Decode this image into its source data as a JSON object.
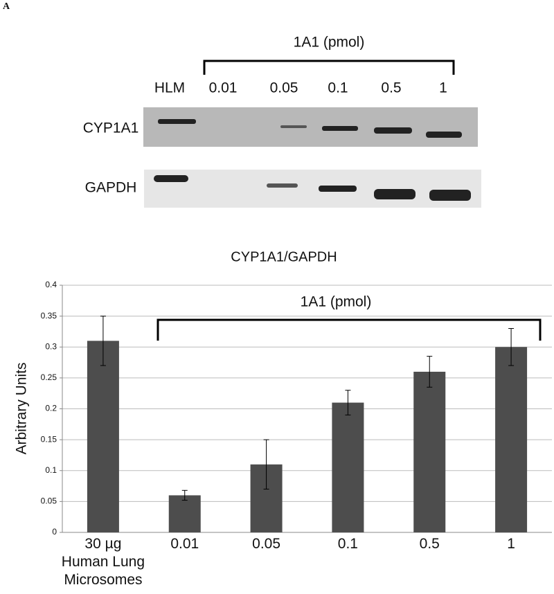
{
  "panel_label": "A",
  "blot": {
    "group_label": "1A1 (pmol)",
    "lanes": [
      "HLM",
      "0.01",
      "0.05",
      "0.1",
      "0.5",
      "1"
    ],
    "rows": [
      "CYP1A1",
      "GAPDH"
    ]
  },
  "chart_data": {
    "type": "bar",
    "title": "CYP1A1/GAPDH",
    "y_label": "Arbitrary Units",
    "annotation": "1A1 (pmol)",
    "categories": [
      "30 µg\nHuman Lung\nMicrosomes",
      "0.01",
      "0.05",
      "0.1",
      "0.5",
      "1"
    ],
    "values": [
      0.31,
      0.06,
      0.11,
      0.21,
      0.26,
      0.3
    ],
    "errors": [
      0.04,
      0.008,
      0.04,
      0.02,
      0.025,
      0.03
    ],
    "color": "#4d4d4d",
    "ylim": [
      0,
      0.4
    ],
    "yticks": [
      0,
      0.05,
      0.1,
      0.15,
      0.2,
      0.25,
      0.3,
      0.35,
      0.4
    ],
    "grid": true
  }
}
